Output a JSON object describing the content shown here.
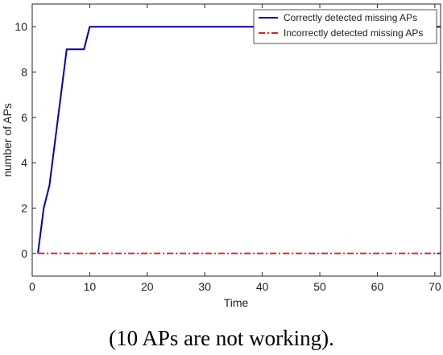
{
  "chart_data": {
    "type": "line",
    "xlabel": "Time",
    "ylabel": "number of APs",
    "xlim": [
      0,
      71
    ],
    "ylim": [
      -1,
      11
    ],
    "xticks": [
      0,
      10,
      20,
      30,
      40,
      50,
      60,
      70
    ],
    "yticks": [
      0,
      2,
      4,
      6,
      8,
      10
    ],
    "grid": false,
    "legend_position": "top-right",
    "series": [
      {
        "name": "Correctly detected missing APs",
        "color": "#0000aa",
        "line_style": "solid",
        "x": [
          1,
          2,
          3,
          6,
          9,
          10,
          71
        ],
        "y": [
          0,
          2,
          3,
          9,
          9,
          10,
          10
        ]
      },
      {
        "name": "Incorrectly detected missing APs",
        "color": "#d62728",
        "line_style": "dash-dot",
        "x": [
          1,
          71
        ],
        "y": [
          0,
          0
        ]
      }
    ]
  },
  "caption": "(10 APs are not working)."
}
